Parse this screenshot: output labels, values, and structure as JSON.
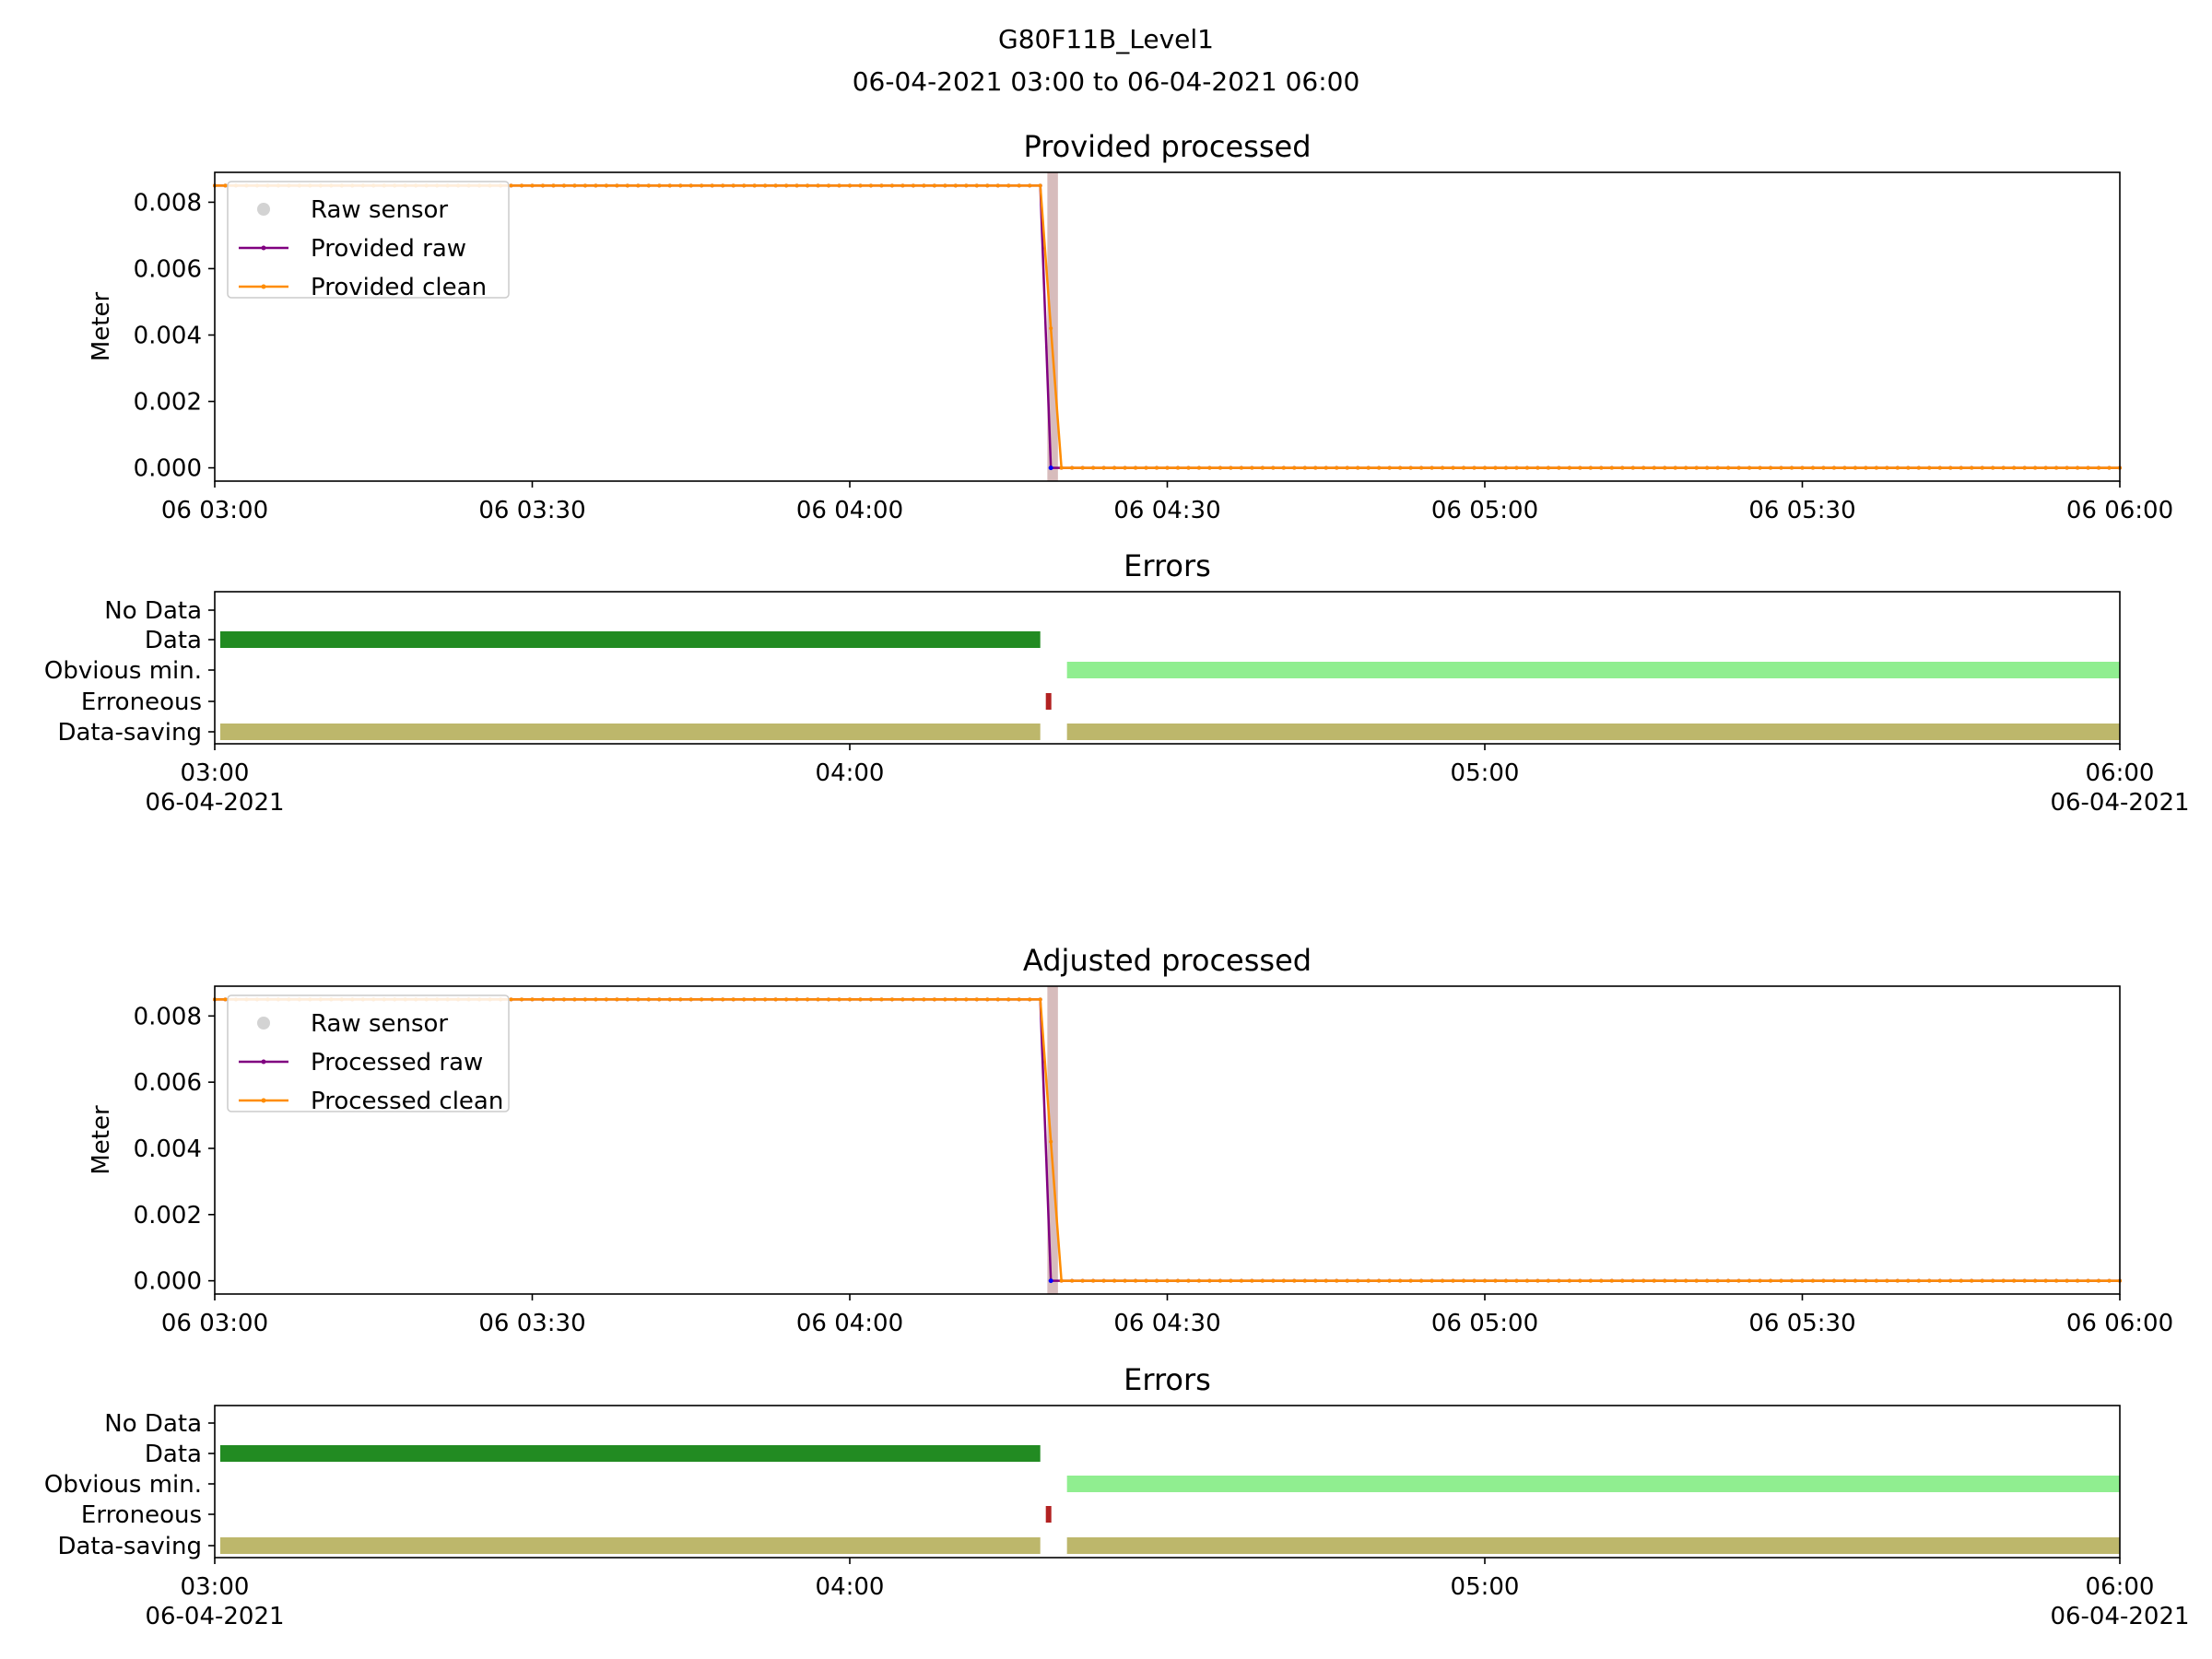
{
  "title": {
    "line1": "G80F11B_Level1",
    "line2": "06-04-2021 03:00 to 06-04-2021 06:00"
  },
  "colors": {
    "raw_sensor": "#d3d3d3",
    "raw": "#800080",
    "clean": "#ff8c00",
    "blue_marker": "#0000ff",
    "error_span": "#bc8f8f",
    "data": "#228b22",
    "obvious_min": "#90ee90",
    "erroneous": "#b22222",
    "data_saving": "#bdb76b"
  },
  "chart_data": [
    {
      "id": "provided",
      "type": "line",
      "title": "Provided processed",
      "ylabel": "Meter",
      "xlabel": "",
      "xlim": [
        "06-04-2021 03:00",
        "06-04-2021 06:00"
      ],
      "x_ticks": [
        "06 03:00",
        "06 03:30",
        "06 04:00",
        "06 04:30",
        "06 05:00",
        "06 05:30",
        "06 06:00"
      ],
      "ylim": [
        -0.0004,
        0.0089
      ],
      "y_ticks": [
        "0.000",
        "0.002",
        "0.004",
        "0.006",
        "0.008"
      ],
      "grid": false,
      "legend_position": "top-left",
      "error_span": [
        "04:18:40",
        "04:19:40"
      ],
      "series": [
        {
          "name": "Raw sensor",
          "style": "dots",
          "color_key": "raw_sensor",
          "points": []
        },
        {
          "name": "Provided raw",
          "style": "line-dots",
          "color_key": "raw",
          "points": [
            [
              "03:00",
              0.0085
            ],
            [
              "04:18",
              0.0085
            ],
            [
              "04:19",
              0.0
            ],
            [
              "04:20",
              0.0
            ],
            [
              "06:00",
              0.0
            ]
          ]
        },
        {
          "name": "Provided clean",
          "style": "line-dots",
          "color_key": "clean",
          "points": [
            [
              "03:00",
              0.0085
            ],
            [
              "04:18",
              0.0085
            ],
            [
              "04:19",
              0.0042
            ],
            [
              "04:20",
              0.0
            ],
            [
              "06:00",
              0.0
            ]
          ]
        }
      ]
    },
    {
      "id": "provided_errors",
      "type": "broken_barh",
      "title": "Errors",
      "categories": [
        "No Data",
        "Data",
        "Obvious min.",
        "Erroneous",
        "Data-saving"
      ],
      "x_ticks": [
        {
          "time": "03:00",
          "label": "03:00",
          "date": "06-04-2021"
        },
        {
          "time": "04:00",
          "label": "04:00",
          "date": ""
        },
        {
          "time": "05:00",
          "label": "05:00",
          "date": ""
        },
        {
          "time": "06:00",
          "label": "06:00",
          "date": "06-04-2021"
        }
      ],
      "bars": [
        {
          "category": "Data",
          "start": "03:00",
          "end": "04:18",
          "color_key": "data"
        },
        {
          "category": "Obvious min.",
          "start": "04:20",
          "end": "06:00",
          "color_key": "obvious_min"
        },
        {
          "category": "Erroneous",
          "start": "04:18",
          "end": "04:19",
          "color_key": "erroneous"
        },
        {
          "category": "Data-saving",
          "start": "03:00",
          "end": "04:18",
          "color_key": "data_saving"
        },
        {
          "category": "Data-saving",
          "start": "04:20",
          "end": "06:00",
          "color_key": "data_saving"
        }
      ]
    },
    {
      "id": "adjusted",
      "type": "line",
      "title": "Adjusted processed",
      "ylabel": "Meter",
      "xlabel": "",
      "xlim": [
        "06-04-2021 03:00",
        "06-04-2021 06:00"
      ],
      "x_ticks": [
        "06 03:00",
        "06 03:30",
        "06 04:00",
        "06 04:30",
        "06 05:00",
        "06 05:30",
        "06 06:00"
      ],
      "ylim": [
        -0.0004,
        0.0089
      ],
      "y_ticks": [
        "0.000",
        "0.002",
        "0.004",
        "0.006",
        "0.008"
      ],
      "grid": false,
      "legend_position": "top-left",
      "error_span": [
        "04:18:40",
        "04:19:40"
      ],
      "series": [
        {
          "name": "Raw sensor",
          "style": "dots",
          "color_key": "raw_sensor",
          "points": []
        },
        {
          "name": "Processed raw",
          "style": "line-dots",
          "color_key": "raw",
          "points": [
            [
              "03:00",
              0.0085
            ],
            [
              "04:18",
              0.0085
            ],
            [
              "04:19",
              0.0
            ],
            [
              "04:20",
              0.0
            ],
            [
              "06:00",
              0.0
            ]
          ]
        },
        {
          "name": "Processed clean",
          "style": "line-dots",
          "color_key": "clean",
          "points": [
            [
              "03:00",
              0.0085
            ],
            [
              "04:18",
              0.0085
            ],
            [
              "04:19",
              0.0042
            ],
            [
              "04:20",
              0.0
            ],
            [
              "06:00",
              0.0
            ]
          ]
        }
      ]
    },
    {
      "id": "adjusted_errors",
      "type": "broken_barh",
      "title": "Errors",
      "categories": [
        "No Data",
        "Data",
        "Obvious min.",
        "Erroneous",
        "Data-saving"
      ],
      "x_ticks": [
        {
          "time": "03:00",
          "label": "03:00",
          "date": "06-04-2021"
        },
        {
          "time": "04:00",
          "label": "04:00",
          "date": ""
        },
        {
          "time": "05:00",
          "label": "05:00",
          "date": ""
        },
        {
          "time": "06:00",
          "label": "06:00",
          "date": "06-04-2021"
        }
      ],
      "bars": [
        {
          "category": "Data",
          "start": "03:00",
          "end": "04:18",
          "color_key": "data"
        },
        {
          "category": "Obvious min.",
          "start": "04:20",
          "end": "06:00",
          "color_key": "obvious_min"
        },
        {
          "category": "Erroneous",
          "start": "04:18",
          "end": "04:19",
          "color_key": "erroneous"
        },
        {
          "category": "Data-saving",
          "start": "03:00",
          "end": "04:18",
          "color_key": "data_saving"
        },
        {
          "category": "Data-saving",
          "start": "04:20",
          "end": "06:00",
          "color_key": "data_saving"
        }
      ]
    }
  ]
}
